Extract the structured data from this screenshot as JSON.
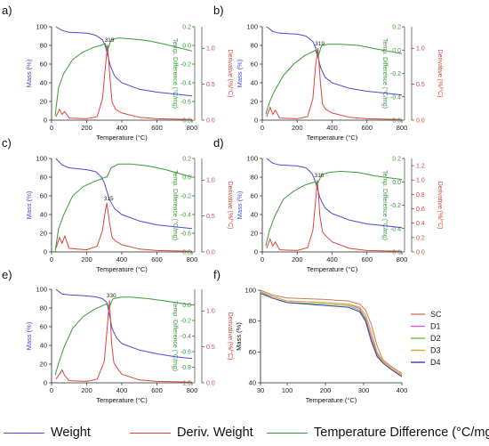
{
  "colors": {
    "mass": "#4a4ad6",
    "deriv": "#d9463c",
    "temp_diff": "#3a9a3a",
    "axis": "#222222",
    "grid_text": "#222222"
  },
  "legend": {
    "weight": "Weight",
    "deriv_weight": "Deriv. Weight",
    "temp_diff": "Temperature Difference (°C/mg)"
  },
  "chart_data": [
    {
      "panel": "a)",
      "type": "line",
      "xlabel": "Temperature (°C)",
      "ylabel_left": "Mass (%)",
      "ylabel_right1": "Temp. Difference (°C/mg)",
      "ylabel_right2": "Derivative (%/°C)",
      "xlim": [
        0,
        800
      ],
      "ylim_left": [
        0,
        100
      ],
      "ylim_right1": [
        -0.8,
        0.2
      ],
      "ylim_right2": [
        0,
        1.3
      ],
      "xticks": [
        "0",
        "200",
        "400",
        "600",
        "800"
      ],
      "yticks_left": [
        "0",
        "20",
        "40",
        "60",
        "80",
        "100"
      ],
      "yticks_right1": [
        "-0.8",
        "-0.6",
        "-0.4",
        "-0.2",
        "0.0",
        "0.2"
      ],
      "yticks_right2": [
        "0.0",
        "0.5",
        "1.0"
      ],
      "peak_label": "319",
      "series": [
        {
          "name": "Weight",
          "axis": "left",
          "x": [
            25,
            60,
            100,
            200,
            250,
            290,
            305,
            319,
            335,
            360,
            400,
            500,
            600,
            700,
            800
          ],
          "y": [
            100,
            96,
            94,
            93,
            91,
            86,
            80,
            70,
            58,
            47,
            40,
            33,
            30,
            28,
            26
          ]
        },
        {
          "name": "Deriv. Weight",
          "axis": "right2",
          "x": [
            25,
            45,
            60,
            75,
            100,
            200,
            260,
            290,
            305,
            319,
            332,
            345,
            365,
            400,
            500,
            600,
            800
          ],
          "y": [
            0.05,
            0.15,
            0.08,
            0.12,
            0.03,
            0.02,
            0.05,
            0.3,
            0.7,
            1.05,
            0.6,
            0.25,
            0.15,
            0.1,
            0.04,
            0.02,
            0.01
          ]
        },
        {
          "name": "Temperature Difference (°C/mg)",
          "axis": "right1",
          "x": [
            20,
            40,
            70,
            120,
            180,
            240,
            280,
            305,
            319,
            340,
            380,
            450,
            550,
            650,
            800
          ],
          "y": [
            -0.75,
            -0.45,
            -0.3,
            -0.15,
            -0.07,
            -0.02,
            0.0,
            0.02,
            -0.05,
            0.06,
            0.08,
            0.07,
            0.05,
            0.01,
            -0.06
          ]
        }
      ]
    },
    {
      "panel": "b)",
      "type": "line",
      "xlabel": "Temperature (°C)",
      "ylabel_left": "Mass (%)",
      "ylabel_right1": "Temp. Difference (°C/mg)",
      "ylabel_right2": "Derivative (%/°C)",
      "xlim": [
        0,
        800
      ],
      "ylim_left": [
        0,
        100
      ],
      "ylim_right1": [
        -0.6,
        0.2
      ],
      "ylim_right2": [
        0,
        1.3
      ],
      "xticks": [
        "0",
        "200",
        "400",
        "600",
        "800"
      ],
      "yticks_left": [
        "0",
        "20",
        "40",
        "60",
        "80",
        "100"
      ],
      "yticks_right1": [
        "-0.6",
        "-0.4",
        "-0.2",
        "0.0",
        "0.2"
      ],
      "yticks_right2": [
        "0.0",
        "0.5",
        "1.0"
      ],
      "peak_label": "319",
      "series": [
        {
          "name": "Weight",
          "axis": "left",
          "x": [
            25,
            60,
            100,
            200,
            250,
            290,
            305,
            319,
            335,
            360,
            400,
            500,
            600,
            700,
            800
          ],
          "y": [
            100,
            95,
            93,
            92,
            90,
            84,
            78,
            68,
            56,
            46,
            40,
            34,
            31,
            29,
            27
          ]
        },
        {
          "name": "Deriv. Weight",
          "axis": "right2",
          "x": [
            25,
            45,
            60,
            75,
            100,
            200,
            260,
            290,
            305,
            319,
            332,
            345,
            365,
            400,
            500,
            600,
            800
          ],
          "y": [
            0.05,
            0.18,
            0.08,
            0.14,
            0.03,
            0.02,
            0.05,
            0.3,
            0.75,
            1.0,
            0.55,
            0.22,
            0.15,
            0.1,
            0.04,
            0.02,
            0.01
          ]
        },
        {
          "name": "Temperature Difference (°C/mg)",
          "axis": "right1",
          "x": [
            20,
            40,
            70,
            120,
            180,
            240,
            280,
            305,
            319,
            340,
            380,
            450,
            550,
            650,
            800
          ],
          "y": [
            -0.55,
            -0.45,
            -0.35,
            -0.22,
            -0.12,
            -0.05,
            -0.02,
            0.0,
            -0.06,
            0.04,
            0.05,
            0.05,
            0.04,
            0.01,
            -0.03
          ]
        }
      ]
    },
    {
      "panel": "c)",
      "type": "line",
      "xlabel": "Temperature (°C)",
      "ylabel_left": "Mass (%)",
      "ylabel_right1": "Temp. Difference (°C/mg)",
      "ylabel_right2": "Derivative (%/°C)",
      "xlim": [
        0,
        800
      ],
      "ylim_left": [
        0,
        100
      ],
      "ylim_right1": [
        -0.8,
        0.2
      ],
      "ylim_right2": [
        0,
        1.3
      ],
      "xticks": [
        "0",
        "200",
        "400",
        "600",
        "800"
      ],
      "yticks_left": [
        "0",
        "20",
        "40",
        "60",
        "80",
        "100"
      ],
      "yticks_right1": [
        "-0.8",
        "-0.6",
        "-0.4",
        "-0.2",
        "0.0",
        "0.2"
      ],
      "yticks_right2": [
        "0.0",
        "0.5",
        "1.0"
      ],
      "peak_label": "315",
      "series": [
        {
          "name": "Weight",
          "axis": "left",
          "x": [
            25,
            60,
            100,
            200,
            250,
            285,
            300,
            315,
            330,
            360,
            400,
            500,
            600,
            700,
            800
          ],
          "y": [
            100,
            93,
            90,
            88,
            86,
            80,
            74,
            65,
            56,
            46,
            40,
            33,
            29,
            27,
            25
          ]
        },
        {
          "name": "Deriv. Weight",
          "axis": "right2",
          "x": [
            25,
            45,
            60,
            75,
            100,
            200,
            260,
            290,
            305,
            315,
            330,
            345,
            365,
            400,
            500,
            600,
            800
          ],
          "y": [
            0.05,
            0.2,
            0.12,
            0.22,
            0.05,
            0.03,
            0.08,
            0.3,
            0.55,
            0.68,
            0.4,
            0.2,
            0.15,
            0.1,
            0.04,
            0.02,
            0.01
          ]
        },
        {
          "name": "Temperature Difference (°C/mg)",
          "axis": "right1",
          "x": [
            20,
            40,
            70,
            120,
            180,
            240,
            280,
            305,
            315,
            340,
            380,
            450,
            550,
            650,
            800
          ],
          "y": [
            -0.8,
            -0.55,
            -0.4,
            -0.2,
            -0.1,
            -0.05,
            -0.02,
            0.0,
            0.0,
            0.1,
            0.14,
            0.14,
            0.12,
            0.08,
            0.0
          ]
        }
      ]
    },
    {
      "panel": "d)",
      "type": "line",
      "xlabel": "Temperature (°C)",
      "ylabel_left": "Mass (%)",
      "ylabel_right1": "Temp. Difference (°C/mg)",
      "ylabel_right2": "Derivative (%/°C)",
      "xlim": [
        0,
        800
      ],
      "ylim_left": [
        0,
        100
      ],
      "ylim_right1": [
        -0.6,
        0.2
      ],
      "ylim_right2": [
        0,
        1.3
      ],
      "xticks": [
        "0",
        "200",
        "400",
        "600",
        "800"
      ],
      "yticks_left": [
        "0",
        "20",
        "40",
        "60",
        "80",
        "100"
      ],
      "yticks_right1": [
        "-0.6",
        "-0.4",
        "-0.2",
        "0.0",
        "0.2"
      ],
      "yticks_right2": [
        "0.0",
        "0.2",
        "0.4",
        "0.6",
        "0.8",
        "1.0",
        "1.2"
      ],
      "peak_label": "316",
      "series": [
        {
          "name": "Weight",
          "axis": "left",
          "x": [
            25,
            60,
            100,
            200,
            250,
            285,
            300,
            316,
            330,
            360,
            400,
            500,
            600,
            700,
            800
          ],
          "y": [
            100,
            95,
            93,
            92,
            90,
            84,
            77,
            68,
            58,
            47,
            41,
            34,
            30,
            28,
            26
          ]
        },
        {
          "name": "Deriv. Weight",
          "axis": "right2",
          "x": [
            25,
            45,
            60,
            75,
            100,
            200,
            260,
            290,
            305,
            316,
            330,
            345,
            365,
            400,
            500,
            600,
            800
          ],
          "y": [
            0.05,
            0.18,
            0.08,
            0.14,
            0.03,
            0.02,
            0.06,
            0.3,
            0.7,
            1.0,
            0.5,
            0.28,
            0.22,
            0.14,
            0.05,
            0.02,
            0.01
          ]
        },
        {
          "name": "Temperature Difference (°C/mg)",
          "axis": "right1",
          "x": [
            20,
            40,
            70,
            120,
            180,
            240,
            280,
            305,
            316,
            340,
            380,
            450,
            550,
            650,
            800
          ],
          "y": [
            -0.55,
            -0.42,
            -0.3,
            -0.15,
            -0.08,
            -0.03,
            -0.01,
            0.0,
            -0.02,
            0.06,
            0.08,
            0.09,
            0.08,
            0.05,
            0.02
          ]
        }
      ]
    },
    {
      "panel": "e)",
      "type": "line",
      "xlabel": "Temperature (°C)",
      "ylabel_left": "Mass (%)",
      "ylabel_right1": "Temp. Difference (°C/mg)",
      "ylabel_right2": "Derivative (%/°C)",
      "xlim": [
        0,
        800
      ],
      "ylim_left": [
        0,
        100
      ],
      "ylim_right1": [
        -1.0,
        0.2
      ],
      "ylim_right2": [
        0,
        1.3
      ],
      "xticks": [
        "0",
        "200",
        "400",
        "600",
        "800"
      ],
      "yticks_left": [
        "0",
        "20",
        "40",
        "60",
        "80",
        "100"
      ],
      "yticks_right1": [
        "-1.0",
        "-0.8",
        "-0.6",
        "-0.4",
        "-0.2",
        "0.0"
      ],
      "yticks_right2": [
        "0.0",
        "0.5",
        "1.0"
      ],
      "peak_label": "330",
      "series": [
        {
          "name": "Weight",
          "axis": "left",
          "x": [
            25,
            60,
            100,
            200,
            250,
            290,
            315,
            330,
            345,
            370,
            400,
            500,
            600,
            700,
            800
          ],
          "y": [
            100,
            95,
            94,
            93,
            92,
            90,
            86,
            72,
            58,
            48,
            42,
            35,
            31,
            28,
            26
          ]
        },
        {
          "name": "Deriv. Weight",
          "axis": "right2",
          "x": [
            25,
            45,
            60,
            75,
            100,
            200,
            260,
            300,
            318,
            330,
            342,
            355,
            375,
            400,
            500,
            600,
            800
          ],
          "y": [
            0.05,
            0.12,
            0.18,
            0.1,
            0.03,
            0.02,
            0.05,
            0.3,
            0.8,
            1.15,
            0.55,
            0.28,
            0.2,
            0.12,
            0.04,
            0.02,
            0.01
          ]
        },
        {
          "name": "Temperature Difference (°C/mg)",
          "axis": "right1",
          "x": [
            20,
            40,
            70,
            120,
            180,
            240,
            280,
            310,
            330,
            350,
            400,
            450,
            550,
            650,
            800
          ],
          "y": [
            -0.9,
            -0.75,
            -0.55,
            -0.3,
            -0.15,
            -0.06,
            -0.02,
            0.01,
            -0.02,
            0.08,
            0.1,
            0.1,
            0.08,
            0.05,
            0.0
          ]
        }
      ]
    },
    {
      "panel": "f)",
      "type": "line",
      "xlabel": "Temperature (°C)",
      "ylabel": "Mass (%)",
      "xlim": [
        30,
        400
      ],
      "ylim": [
        40,
        100
      ],
      "xticks": [
        "30",
        "100",
        "200",
        "300",
        "400"
      ],
      "yticks": [
        "40",
        "60",
        "80",
        "100"
      ],
      "series": [
        {
          "name": "SC",
          "color": "#c87a5a",
          "x": [
            30,
            60,
            100,
            200,
            260,
            290,
            305,
            320,
            335,
            350,
            370,
            400
          ],
          "y": [
            100,
            97,
            95,
            94,
            93,
            91,
            87,
            78,
            64,
            55,
            51,
            46
          ]
        },
        {
          "name": "D1",
          "color": "#d45ed4",
          "x": [
            30,
            60,
            100,
            200,
            260,
            290,
            305,
            320,
            335,
            350,
            370,
            400
          ],
          "y": [
            99,
            96,
            93,
            92,
            91,
            88,
            82,
            70,
            59,
            54,
            50,
            45
          ]
        },
        {
          "name": "D2",
          "color": "#7ab83a",
          "x": [
            30,
            60,
            100,
            200,
            260,
            290,
            305,
            320,
            335,
            350,
            370,
            400
          ],
          "y": [
            99,
            95,
            92,
            91,
            90,
            87,
            81,
            68,
            58,
            53,
            49,
            44
          ]
        },
        {
          "name": "D3",
          "color": "#d8a82a",
          "x": [
            30,
            60,
            100,
            200,
            260,
            290,
            305,
            320,
            335,
            350,
            370,
            400
          ],
          "y": [
            99,
            96,
            93,
            92,
            91,
            89,
            84,
            73,
            60,
            54,
            50,
            45
          ]
        },
        {
          "name": "D4",
          "color": "#3a3ab8",
          "x": [
            30,
            60,
            100,
            200,
            260,
            290,
            305,
            320,
            335,
            350,
            370,
            400
          ],
          "y": [
            98,
            95,
            92,
            90,
            89,
            86,
            80,
            67,
            57,
            53,
            49,
            44
          ]
        }
      ]
    }
  ]
}
